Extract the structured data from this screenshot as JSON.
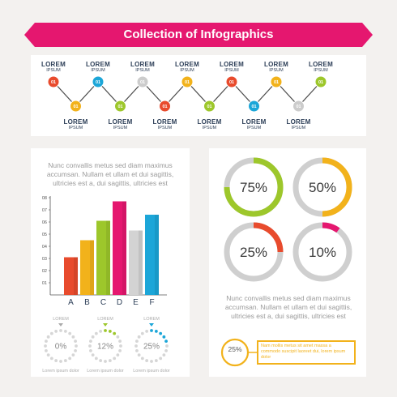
{
  "header": {
    "title": "Collection of Infographics",
    "color": "#e5176f"
  },
  "timeline": {
    "colors": [
      "#e84b2d",
      "#f2b21b",
      "#1ca6d8",
      "#9dc72b",
      "#cccccc",
      "#e84b2d",
      "#f2b21b",
      "#9dc72b",
      "#e84b2d",
      "#1ca6d8",
      "#f2b21b",
      "#cccccc",
      "#9dc72b"
    ],
    "nodes": [
      {
        "label": "LOREM",
        "sub": "IPSUM",
        "num": "01"
      },
      {
        "label": "LOREM",
        "sub": "IPSUM",
        "num": "01"
      },
      {
        "label": "LOREM",
        "sub": "IPSUM",
        "num": "01"
      },
      {
        "label": "LOREM",
        "sub": "IPSUM",
        "num": "01"
      },
      {
        "label": "LOREM",
        "sub": "IPSUM",
        "num": "01"
      },
      {
        "label": "LOREM",
        "sub": "IPSUM",
        "num": "01"
      },
      {
        "label": "LOREM",
        "sub": "IPSUM",
        "num": "01"
      },
      {
        "label": "LOREM",
        "sub": "IPSUM",
        "num": "01"
      },
      {
        "label": "LOREM",
        "sub": "IPSUM",
        "num": "01"
      },
      {
        "label": "LOREM",
        "sub": "IPSUM",
        "num": "01"
      },
      {
        "label": "LOREM",
        "sub": "IPSUM",
        "num": "01"
      },
      {
        "label": "LOREM",
        "sub": "IPSUM",
        "num": "01"
      },
      {
        "label": "LOREM",
        "sub": "IPSUM",
        "num": "01"
      }
    ]
  },
  "left_card": {
    "intro": "Nunc convallis metus sed diam maximus accumsan. Nullam et ullam et dui sagittis, ultricies est a, dui sagittis, ultricies est",
    "chart": {
      "categories": [
        "A",
        "B",
        "C",
        "D",
        "E",
        "F"
      ],
      "values": [
        3.1,
        4.5,
        6.1,
        7.7,
        5.3,
        6.6
      ],
      "colors": [
        "#e84b2d",
        "#f2b21b",
        "#9dc72b",
        "#e5176f",
        "#d3d3d3",
        "#1ca6d8"
      ],
      "ylim": [
        0,
        8
      ],
      "yticks": [
        "01",
        "02",
        "03",
        "04",
        "05",
        "06",
        "07",
        "08"
      ]
    },
    "dials": [
      {
        "label": "LOREM",
        "value": "0%",
        "fraction": 0,
        "color": "#aaaaaa",
        "caption": "Lorem ipsum dolor"
      },
      {
        "label": "LOREM",
        "value": "12%",
        "fraction": 0.12,
        "color": "#9dc72b",
        "caption": "Lorem ipsum dolor"
      },
      {
        "label": "LOREM",
        "value": "25%",
        "fraction": 0.25,
        "color": "#1ca6d8",
        "caption": "Lorem ipsum dolor"
      }
    ]
  },
  "right_card": {
    "rings": [
      {
        "value": "75%",
        "fraction": 0.75,
        "color": "#9dc72b"
      },
      {
        "value": "50%",
        "fraction": 0.5,
        "color": "#f2b21b"
      },
      {
        "value": "25%",
        "fraction": 0.25,
        "color": "#e84b2d"
      },
      {
        "value": "10%",
        "fraction": 0.1,
        "color": "#e5176f"
      }
    ],
    "text": "Nunc convallis metus sed diam maximus accumsan. Nullam et ullam et dui sagittis, ultricies est a, dui sagittis, ultricies est",
    "callout": {
      "value": "25%",
      "text": "Nam mollis metus sit amet massa a commodo suscipit laoreet dui, lorem ipsum dolor",
      "color": "#f2b21b"
    }
  }
}
